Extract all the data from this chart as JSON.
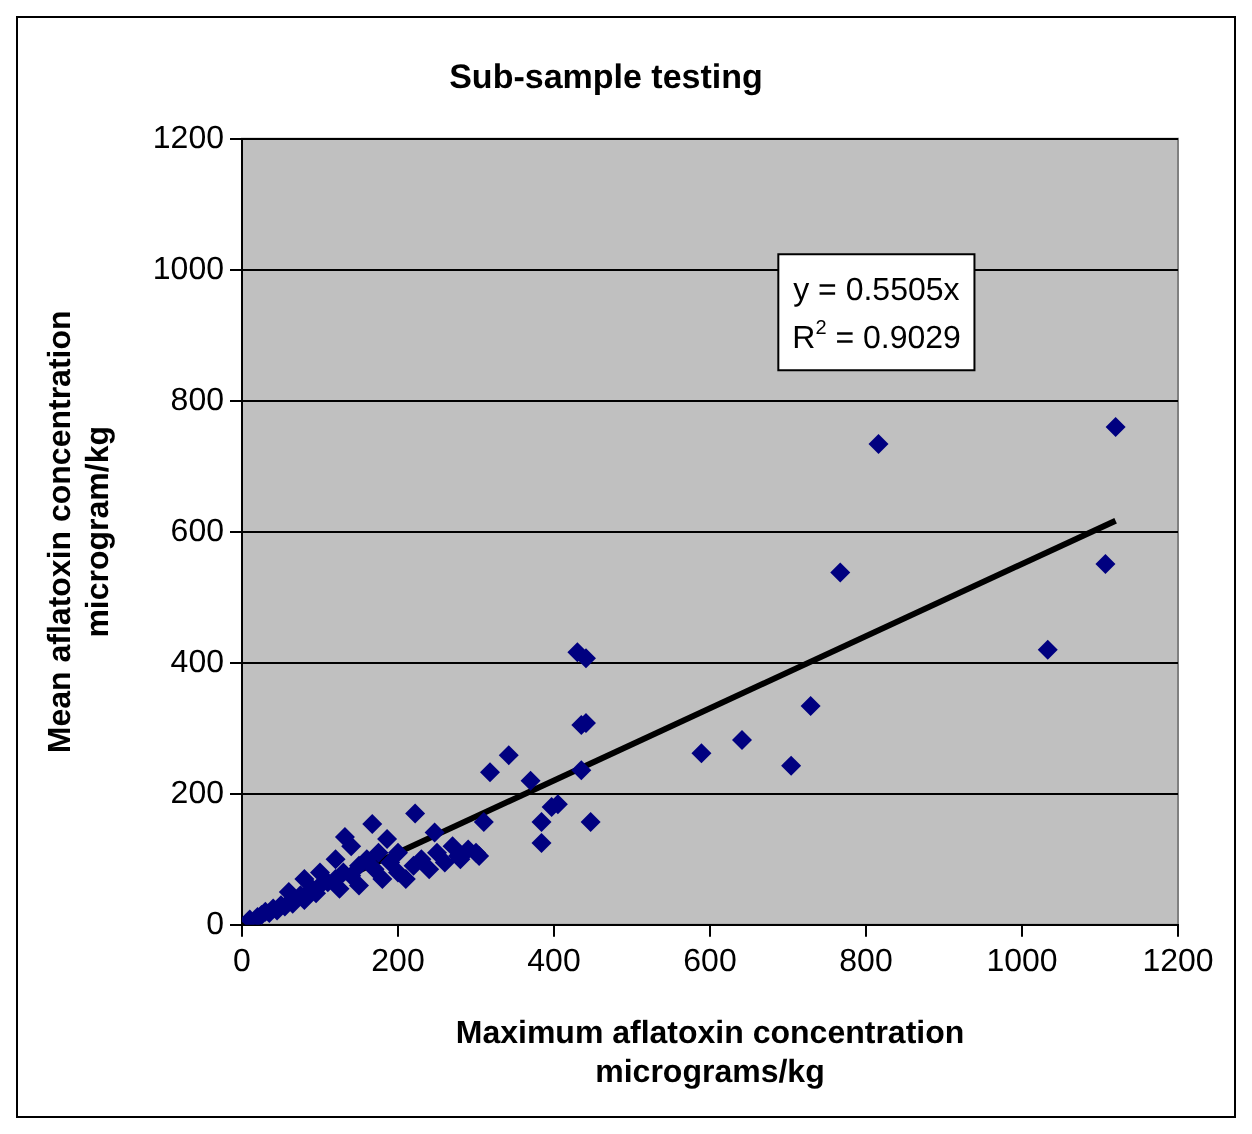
{
  "chart_data": {
    "type": "scatter",
    "title": "Sub-sample testing",
    "xlabel": "Maximum aflatoxin concentration\nmicrograms/kg",
    "ylabel": "Mean aflatoxin concentration\nmicrogram/kg",
    "annotations": [
      "y = 0.5505x",
      "R$^{2}$ = 0.9029"
    ],
    "xlim": [
      0,
      1200
    ],
    "xticks": [
      0,
      200,
      400,
      600,
      800,
      1000,
      1200
    ],
    "ylim": [
      0,
      1200
    ],
    "yticks": [
      0,
      200,
      400,
      600,
      800,
      1000,
      1200
    ],
    "grid": "y",
    "legend": false,
    "marker": "diamond",
    "series": [
      {
        "color": "#000080",
        "x": [
          10,
          20,
          25,
          30,
          35,
          40,
          45,
          50,
          55,
          60,
          65,
          75,
          80,
          80,
          90,
          95,
          100,
          100,
          110,
          120,
          120,
          125,
          130,
          132,
          140,
          140,
          150,
          150,
          160,
          167,
          170,
          175,
          180,
          186,
          190,
          200,
          200,
          210,
          220,
          222,
          230,
          240,
          247,
          250,
          260,
          270,
          277,
          280,
          290,
          300,
          304,
          310,
          318,
          342,
          370,
          384,
          384,
          397,
          405,
          430,
          435,
          435,
          441,
          441,
          447,
          589,
          641,
          704,
          729,
          767,
          816,
          1033,
          1107,
          1120
        ],
        "values": [
          8,
          12,
          15,
          20,
          18,
          25,
          22,
          30,
          28,
          50,
          32,
          45,
          38,
          70,
          55,
          48,
          60,
          80,
          65,
          70,
          100,
          55,
          80,
          134,
          75,
          120,
          90,
          60,
          100,
          154,
          85,
          110,
          70,
          131,
          95,
          80,
          110,
          70,
          90,
          170,
          100,
          85,
          141,
          110,
          95,
          120,
          105,
          100,
          115,
          110,
          105,
          157,
          233,
          259,
          220,
          157,
          125,
          180,
          184,
          416,
          305,
          236,
          407,
          308,
          157,
          262,
          282,
          243,
          334,
          538,
          734,
          420,
          551,
          760
        ]
      },
      {
        "type": "line",
        "marker": "none",
        "color": "#000000",
        "x": [
          0,
          1120
        ],
        "values": [
          0,
          617
        ]
      }
    ]
  }
}
